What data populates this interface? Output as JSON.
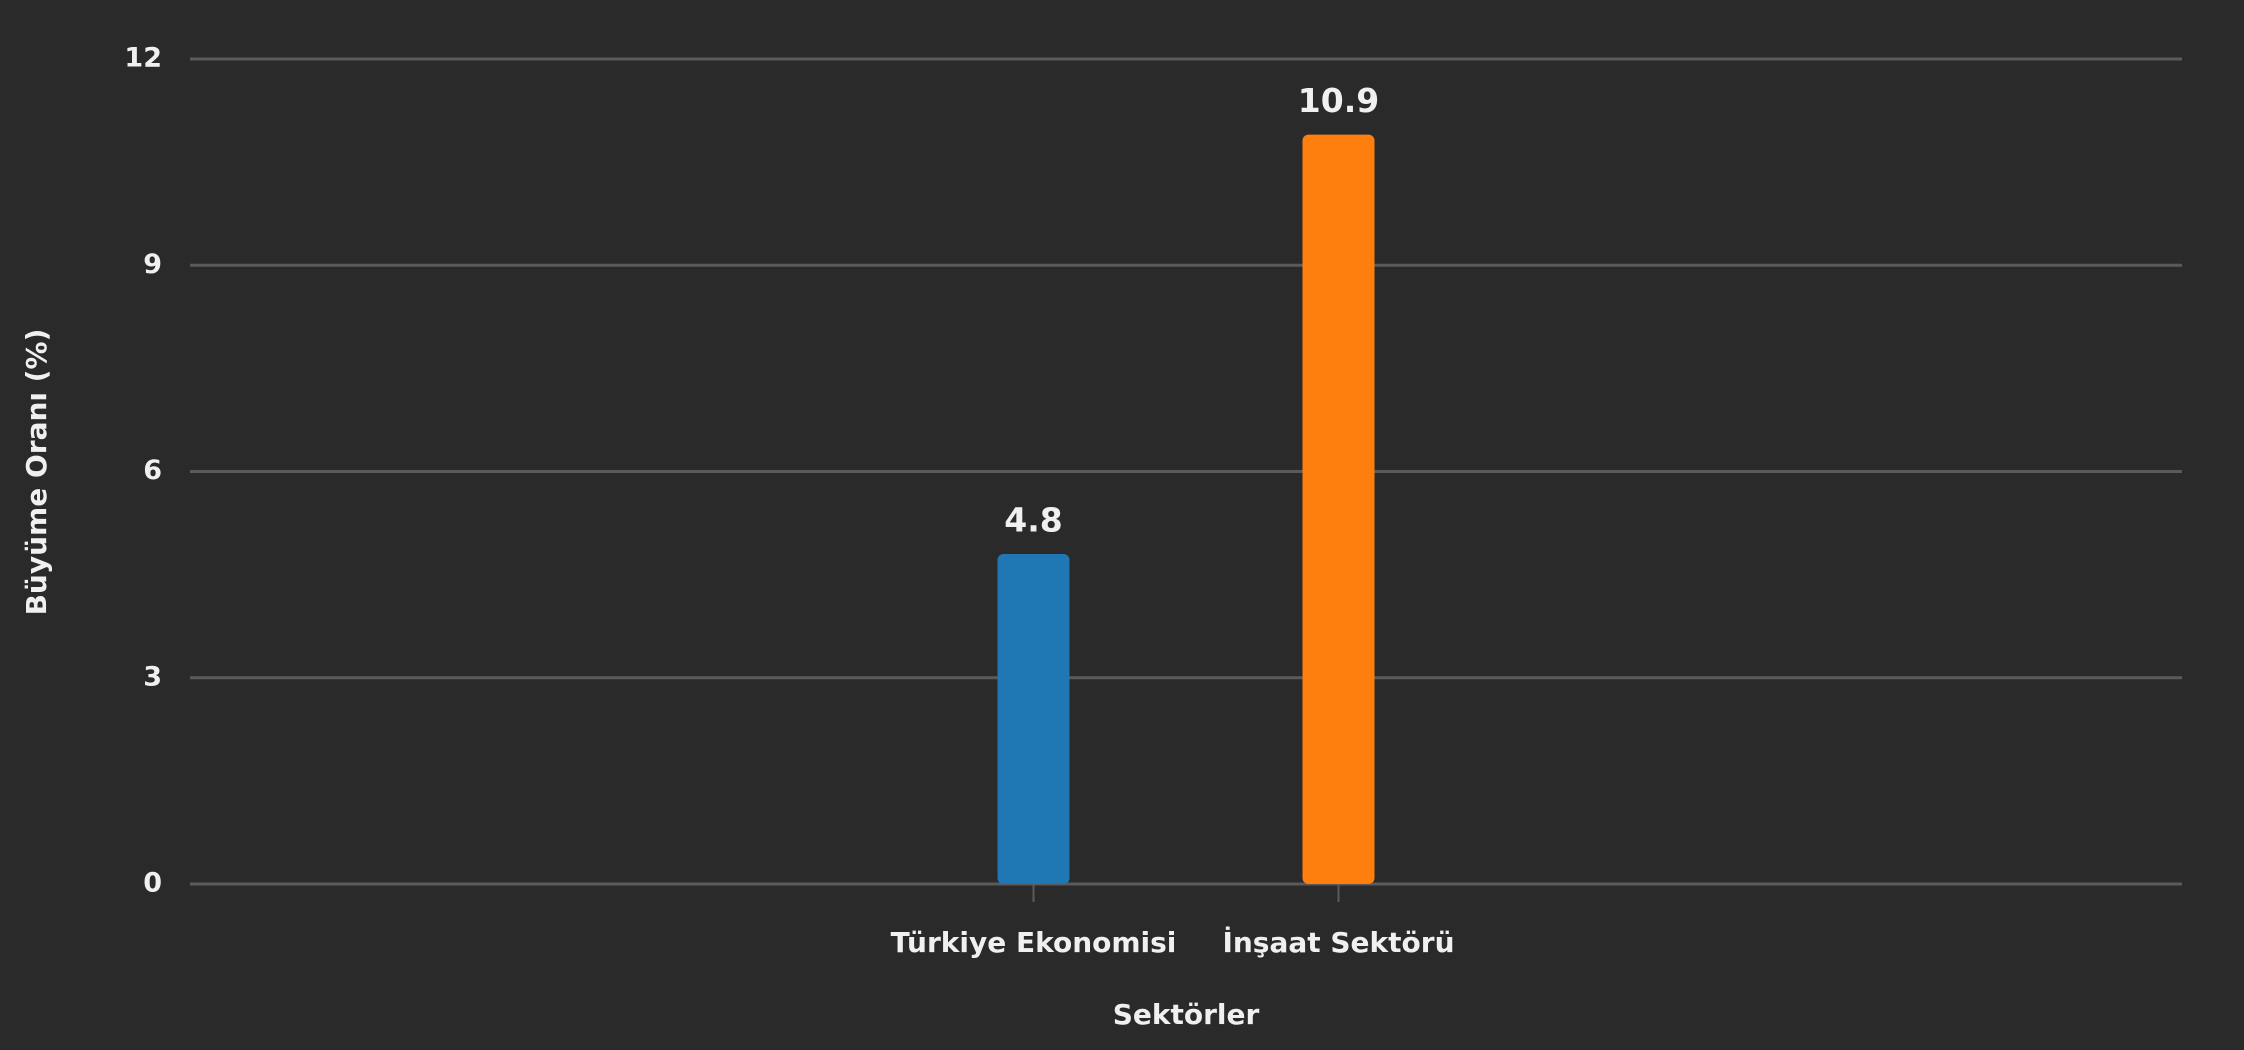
{
  "chart_data": {
    "type": "bar",
    "x_label": "Sektörler",
    "y_label": "Büyüme Oranı (%)",
    "categories": [
      "Türkiye Ekonomisi",
      "İnşaat Sektörü"
    ],
    "values": [
      4.8,
      10.9
    ],
    "colors": [
      "#1f77b4",
      "#ff7f0e"
    ],
    "ylim": [
      0,
      12
    ],
    "yticks": [
      0,
      3,
      6,
      9,
      12
    ],
    "grid": true
  }
}
